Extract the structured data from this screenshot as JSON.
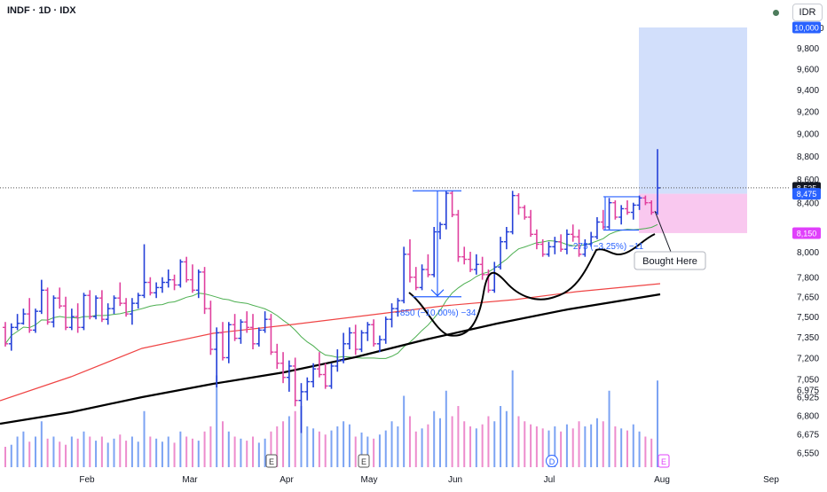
{
  "header": {
    "symbol_line": "INDF · 1D · IDX",
    "currency": "IDR"
  },
  "chart_data": {
    "type": "candlestick",
    "x_tick_labels": [
      "Feb",
      "Mar",
      "Apr",
      "May",
      "Jun",
      "Jul",
      "Aug",
      "Sep"
    ],
    "y_tick_labels": [
      6550,
      6675,
      6800,
      6925,
      6975,
      7050,
      7200,
      7350,
      7500,
      7650,
      7800,
      8000,
      8150,
      8400,
      8525,
      8600,
      8800,
      9000,
      9200,
      9400,
      9600,
      9800,
      10000
    ],
    "price_scale": "log",
    "price_badges": [
      {
        "label": "10,000",
        "value": 10000,
        "color": "#2962ff"
      },
      {
        "label": "8,525",
        "value": 8525,
        "color": "#131722"
      },
      {
        "label": "8,475",
        "value": 8475,
        "color": "#2962ff"
      },
      {
        "label": "8,150",
        "value": 8150,
        "color": "#e040fb"
      }
    ],
    "colors": {
      "up": "#2440d8",
      "down": "#e0409e",
      "ma_fast": "#4caf50",
      "ma_mid": "#ef4444",
      "ma_slow": "#000000",
      "target_zone": "#cddcfb",
      "stop_zone": "#f9c8ef",
      "measure": "#2962ff"
    },
    "target_zone": {
      "top": 10000,
      "bottom": 8475
    },
    "stop_zone": {
      "top": 8475,
      "bottom": 8150
    },
    "last_close_line": 8525,
    "measurements": [
      {
        "label": "−850 (−10.00%) −34",
        "top": 8500,
        "bottom": 7650
      },
      {
        "label": "−275 (−3.25%) −11",
        "top": 8450,
        "bottom": 8175
      }
    ],
    "annotation": {
      "label": "Bought Here"
    },
    "event_markers": [
      "E",
      "E",
      "D",
      "E"
    ],
    "candles": [
      [
        7420,
        7460,
        7280,
        7300
      ],
      [
        7300,
        7450,
        7250,
        7420
      ],
      [
        7420,
        7520,
        7400,
        7450
      ],
      [
        7450,
        7560,
        7440,
        7520
      ],
      [
        7520,
        7640,
        7380,
        7400
      ],
      [
        7400,
        7560,
        7380,
        7540
      ],
      [
        7540,
        7780,
        7520,
        7700
      ],
      [
        7700,
        7720,
        7440,
        7460
      ],
      [
        7460,
        7660,
        7420,
        7640
      ],
      [
        7640,
        7720,
        7560,
        7580
      ],
      [
        7580,
        7650,
        7400,
        7420
      ],
      [
        7420,
        7560,
        7400,
        7500
      ],
      [
        7500,
        7600,
        7380,
        7420
      ],
      [
        7420,
        7680,
        7400,
        7660
      ],
      [
        7660,
        7700,
        7480,
        7500
      ],
      [
        7500,
        7660,
        7480,
        7640
      ],
      [
        7640,
        7700,
        7460,
        7480
      ],
      [
        7480,
        7600,
        7440,
        7560
      ],
      [
        7560,
        7660,
        7520,
        7640
      ],
      [
        7640,
        7760,
        7580,
        7600
      ],
      [
        7600,
        7640,
        7500,
        7520
      ],
      [
        7520,
        7640,
        7440,
        7600
      ],
      [
        7600,
        7680,
        7560,
        7660
      ],
      [
        7660,
        8060,
        7640,
        7760
      ],
      [
        7760,
        7800,
        7660,
        7680
      ],
      [
        7680,
        7760,
        7640,
        7720
      ],
      [
        7720,
        7800,
        7680,
        7760
      ],
      [
        7760,
        7860,
        7720,
        7780
      ],
      [
        7780,
        7820,
        7700,
        7740
      ],
      [
        7740,
        7940,
        7720,
        7920
      ],
      [
        7920,
        7960,
        7760,
        7780
      ],
      [
        7780,
        7900,
        7680,
        7700
      ],
      [
        7700,
        7860,
        7640,
        7840
      ],
      [
        7840,
        7880,
        7520,
        7560
      ],
      [
        7560,
        7620,
        7220,
        7260
      ],
      [
        7260,
        7420,
        6990,
        7380
      ],
      [
        7380,
        7460,
        7180,
        7200
      ],
      [
        7200,
        7460,
        7160,
        7440
      ],
      [
        7440,
        7520,
        7320,
        7340
      ],
      [
        7340,
        7480,
        7300,
        7460
      ],
      [
        7460,
        7540,
        7380,
        7420
      ],
      [
        7420,
        7520,
        7260,
        7300
      ],
      [
        7300,
        7420,
        7280,
        7400
      ],
      [
        7400,
        7540,
        7380,
        7480
      ],
      [
        7480,
        7520,
        7220,
        7240
      ],
      [
        7240,
        7300,
        7120,
        7160
      ],
      [
        7160,
        7240,
        7020,
        7060
      ],
      [
        7060,
        7180,
        6960,
        7140
      ],
      [
        7140,
        7200,
        6860,
        6900
      ],
      [
        6900,
        7020,
        6680,
        6960
      ],
      [
        6960,
        7060,
        6900,
        7030
      ],
      [
        7030,
        7160,
        6990,
        7120
      ],
      [
        7120,
        7240,
        7060,
        7080
      ],
      [
        7080,
        7160,
        6980,
        7000
      ],
      [
        7000,
        7160,
        6980,
        7140
      ],
      [
        7140,
        7260,
        7100,
        7180
      ],
      [
        7180,
        7380,
        7160,
        7300
      ],
      [
        7300,
        7420,
        7260,
        7380
      ],
      [
        7380,
        7440,
        7220,
        7260
      ],
      [
        7260,
        7400,
        7240,
        7380
      ],
      [
        7380,
        7460,
        7320,
        7440
      ],
      [
        7440,
        7480,
        7280,
        7300
      ],
      [
        7300,
        7360,
        7240,
        7330
      ],
      [
        7330,
        7500,
        7300,
        7480
      ],
      [
        7480,
        7600,
        7420,
        7560
      ],
      [
        7560,
        7640,
        7500,
        7620
      ],
      [
        7620,
        8040,
        7600,
        7980
      ],
      [
        7980,
        8100,
        7760,
        7800
      ],
      [
        7800,
        7880,
        7700,
        7720
      ],
      [
        7720,
        7900,
        7700,
        7860
      ],
      [
        7860,
        7980,
        7800,
        7820
      ],
      [
        7820,
        8200,
        7800,
        8160
      ],
      [
        8160,
        8240,
        8100,
        8220
      ],
      [
        8220,
        8500,
        8180,
        8480
      ],
      [
        8480,
        8500,
        8280,
        8300
      ],
      [
        8300,
        8340,
        7920,
        7960
      ],
      [
        7960,
        8040,
        7900,
        7940
      ],
      [
        7940,
        8000,
        7840,
        7860
      ],
      [
        7860,
        7980,
        7820,
        7900
      ],
      [
        7900,
        7960,
        7780,
        7820
      ],
      [
        7820,
        7860,
        7680,
        7700
      ],
      [
        7700,
        7920,
        7680,
        7880
      ],
      [
        7880,
        8120,
        7860,
        8080
      ],
      [
        8080,
        8200,
        8020,
        8160
      ],
      [
        8160,
        8500,
        8140,
        8460
      ],
      [
        8460,
        8480,
        8300,
        8360
      ],
      [
        8360,
        8380,
        8260,
        8280
      ],
      [
        8280,
        8340,
        8120,
        8140
      ],
      [
        8140,
        8180,
        8020,
        8060
      ],
      [
        8060,
        8100,
        7960,
        7980
      ],
      [
        7980,
        8080,
        7960,
        8040
      ],
      [
        8040,
        8120,
        7980,
        8080
      ],
      [
        8080,
        8140,
        8000,
        8020
      ],
      [
        8020,
        8180,
        7980,
        8140
      ],
      [
        8140,
        8220,
        8080,
        8120
      ],
      [
        8120,
        8180,
        7960,
        7980
      ],
      [
        7980,
        8100,
        7960,
        8060
      ],
      [
        8060,
        8160,
        8040,
        8120
      ],
      [
        8120,
        8280,
        8100,
        8240
      ],
      [
        8240,
        8340,
        8180,
        8200
      ],
      [
        8200,
        8440,
        8180,
        8400
      ],
      [
        8400,
        8420,
        8260,
        8280
      ],
      [
        8280,
        8380,
        8220,
        8350
      ],
      [
        8350,
        8420,
        8300,
        8320
      ],
      [
        8320,
        8400,
        8260,
        8380
      ],
      [
        8380,
        8460,
        8340,
        8440
      ],
      [
        8440,
        8460,
        8380,
        8400
      ],
      [
        8400,
        8420,
        8300,
        8320
      ],
      [
        8320,
        8860,
        8300,
        8525
      ]
    ],
    "volumes": [
      0.2,
      0.22,
      0.3,
      0.35,
      0.25,
      0.3,
      0.45,
      0.28,
      0.3,
      0.25,
      0.22,
      0.3,
      0.28,
      0.35,
      0.3,
      0.26,
      0.3,
      0.24,
      0.28,
      0.32,
      0.26,
      0.3,
      0.25,
      0.55,
      0.3,
      0.28,
      0.25,
      0.3,
      0.24,
      0.35,
      0.3,
      0.28,
      0.26,
      0.35,
      0.4,
      0.9,
      0.45,
      0.35,
      0.3,
      0.28,
      0.26,
      0.3,
      0.24,
      0.28,
      0.35,
      0.4,
      0.45,
      0.5,
      0.55,
      0.6,
      0.4,
      0.38,
      0.35,
      0.32,
      0.36,
      0.4,
      0.45,
      0.42,
      0.3,
      0.34,
      0.3,
      0.28,
      0.32,
      0.36,
      0.45,
      0.4,
      0.7,
      0.5,
      0.35,
      0.38,
      0.42,
      0.55,
      0.48,
      0.75,
      0.5,
      0.6,
      0.45,
      0.4,
      0.38,
      0.42,
      0.5,
      0.45,
      0.6,
      0.55,
      0.95,
      0.5,
      0.45,
      0.42,
      0.4,
      0.38,
      0.36,
      0.4,
      0.35,
      0.42,
      0.38,
      0.45,
      0.4,
      0.42,
      0.48,
      0.45,
      0.75,
      0.4,
      0.38,
      0.36,
      0.42,
      0.35,
      0.3,
      0.28,
      0.85
    ]
  }
}
